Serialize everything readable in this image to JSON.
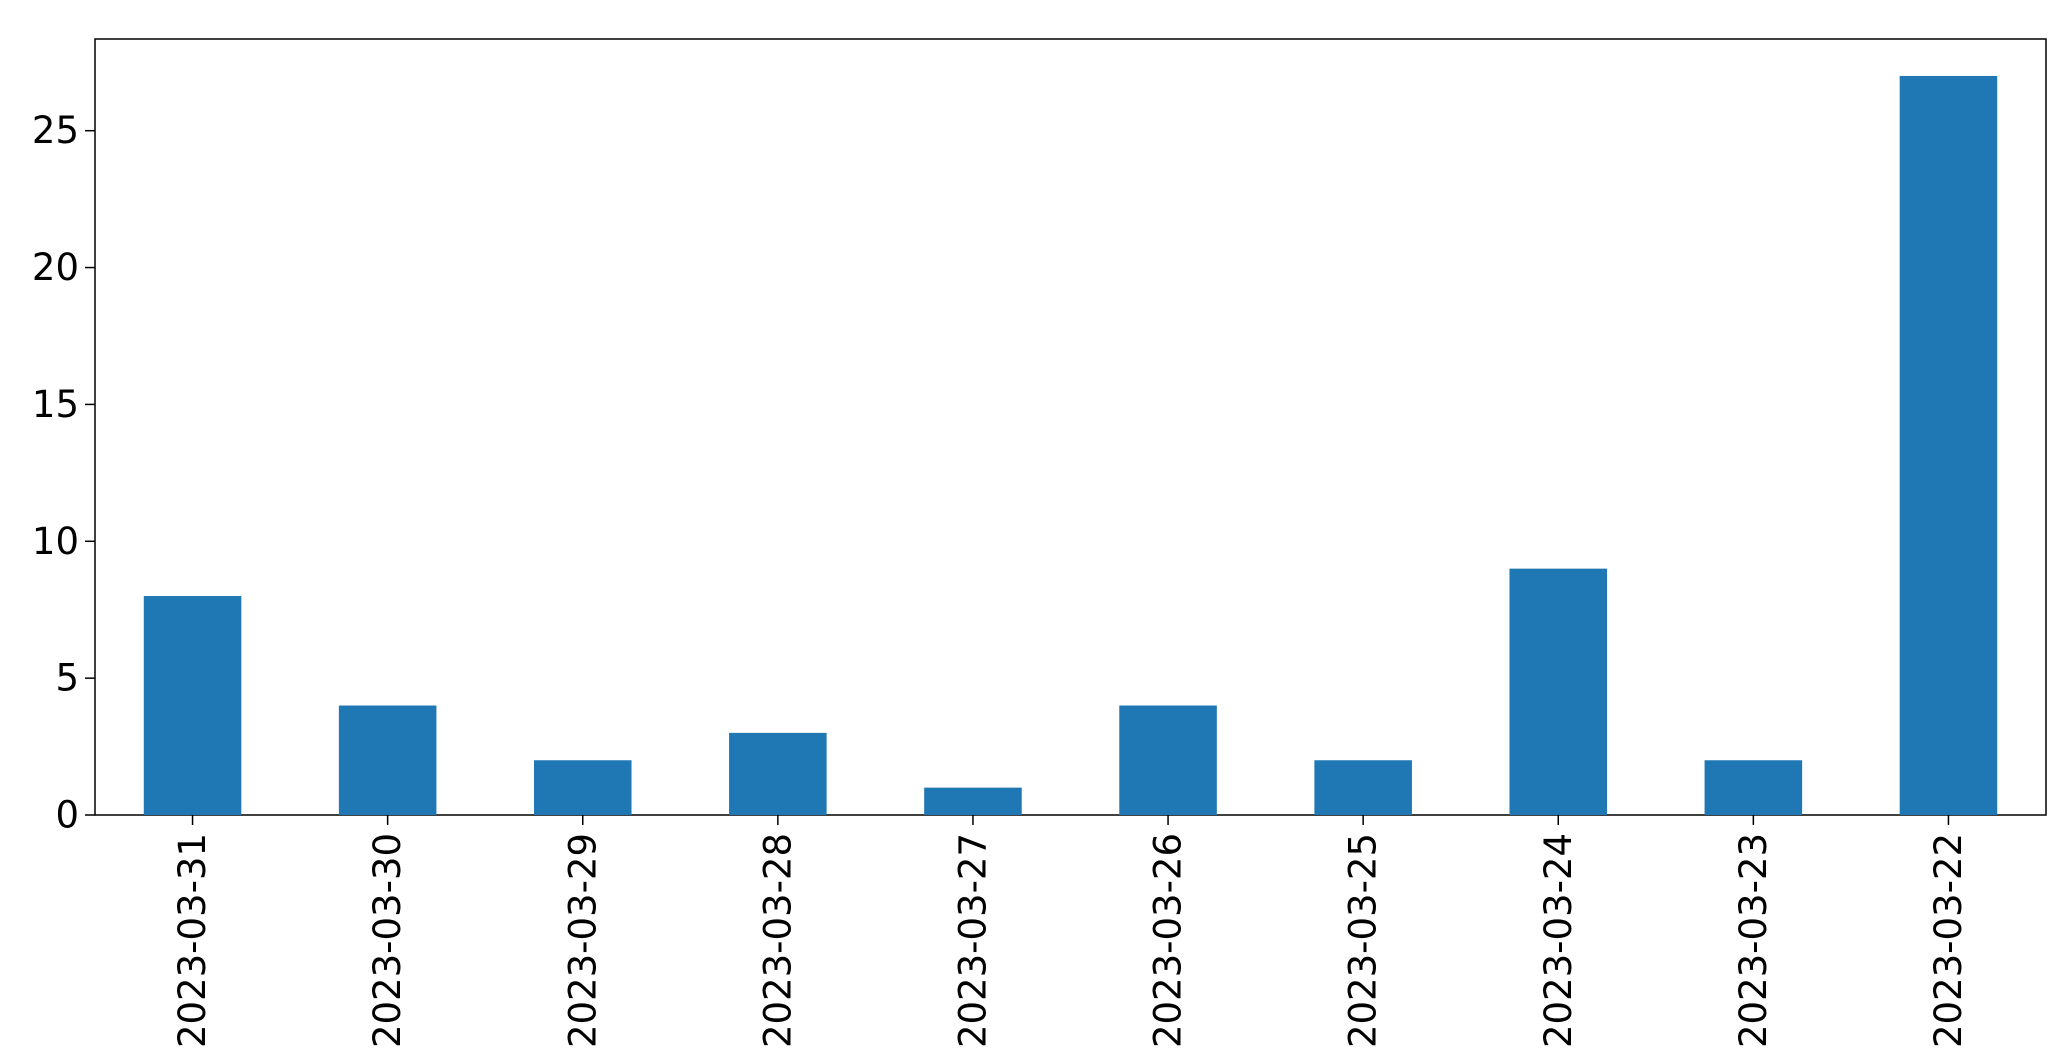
{
  "chart_data": {
    "type": "bar",
    "title": "",
    "xlabel": "",
    "ylabel": "",
    "categories": [
      "2023-03-31",
      "2023-03-30",
      "2023-03-29",
      "2023-03-28",
      "2023-03-27",
      "2023-03-26",
      "2023-03-25",
      "2023-03-24",
      "2023-03-23",
      "2023-03-22"
    ],
    "values": [
      8,
      4,
      2,
      3,
      1,
      4,
      2,
      9,
      2,
      27
    ],
    "ylim": [
      0,
      28.35
    ],
    "yticks": [
      0,
      5,
      10,
      15,
      20,
      25
    ],
    "ytick_labels": [
      "0",
      "5",
      "10",
      "15",
      "20",
      "25"
    ],
    "grid": false,
    "legend": "none",
    "bar_color": "#1f77b4",
    "axis_color": "#000000",
    "background_color": "#ffffff"
  }
}
